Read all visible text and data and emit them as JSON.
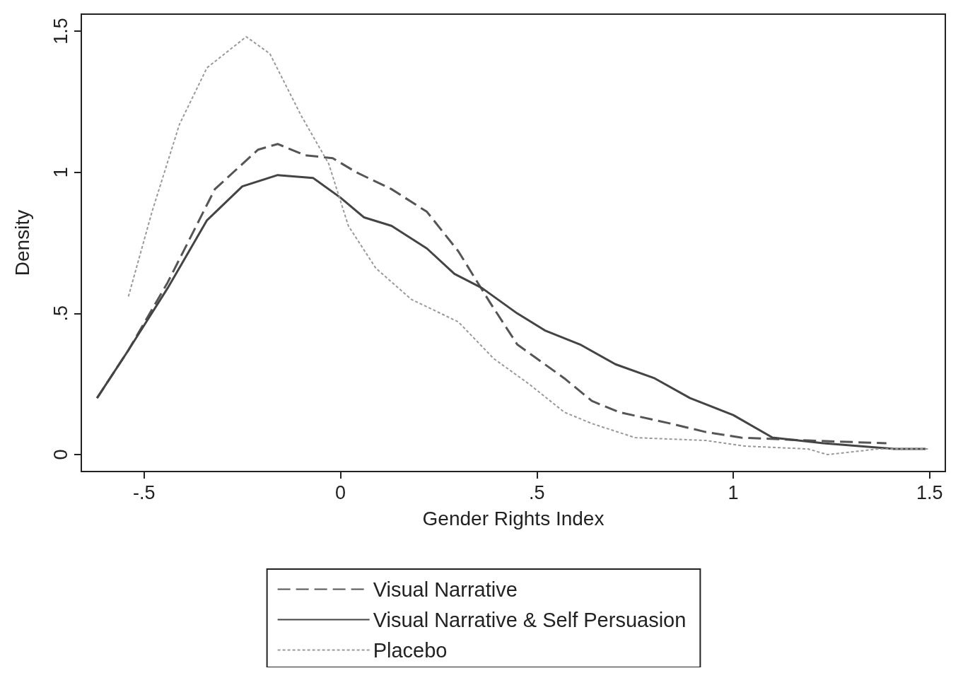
{
  "chart_data": {
    "type": "line",
    "xlabel": "Gender Rights Index",
    "ylabel": "Density",
    "xlim": [
      -0.66,
      1.54
    ],
    "ylim": [
      -0.06,
      1.56
    ],
    "xticks": [
      {
        "value": -0.5,
        "label": "-.5"
      },
      {
        "value": 0,
        "label": "0"
      },
      {
        "value": 0.5,
        "label": ".5"
      },
      {
        "value": 1,
        "label": "1"
      },
      {
        "value": 1.5,
        "label": "1.5"
      }
    ],
    "yticks": [
      {
        "value": 0,
        "label": "0"
      },
      {
        "value": 0.5,
        "label": ".5"
      },
      {
        "value": 1,
        "label": "1"
      },
      {
        "value": 1.5,
        "label": "1.5"
      }
    ],
    "grid": false,
    "legend": "bottom",
    "marker": "none",
    "series": [
      {
        "name": "Visual Narrative",
        "color": "#555555",
        "line_style": "dashed",
        "x": [
          -0.62,
          -0.54,
          -0.44,
          -0.32,
          -0.21,
          -0.16,
          -0.09,
          -0.02,
          0.04,
          0.13,
          0.22,
          0.3,
          0.38,
          0.45,
          0.5,
          0.57,
          0.64,
          0.71,
          0.84,
          0.93,
          1.02,
          1.19,
          1.39
        ],
        "values": [
          0.2,
          0.37,
          0.61,
          0.94,
          1.08,
          1.1,
          1.06,
          1.05,
          1.0,
          0.94,
          0.86,
          0.72,
          0.54,
          0.39,
          0.34,
          0.27,
          0.19,
          0.15,
          0.11,
          0.08,
          0.06,
          0.05,
          0.04
        ]
      },
      {
        "name": "Visual Narrative & Self Persuasion",
        "color": "#444444",
        "line_style": "solid",
        "x": [
          -0.62,
          -0.54,
          -0.44,
          -0.34,
          -0.25,
          -0.16,
          -0.07,
          0.0,
          0.06,
          0.13,
          0.22,
          0.29,
          0.36,
          0.45,
          0.52,
          0.61,
          0.7,
          0.8,
          0.89,
          1.0,
          1.1,
          1.23,
          1.41,
          1.49
        ],
        "values": [
          0.2,
          0.37,
          0.59,
          0.83,
          0.95,
          0.99,
          0.98,
          0.91,
          0.84,
          0.81,
          0.73,
          0.64,
          0.59,
          0.5,
          0.44,
          0.39,
          0.32,
          0.27,
          0.2,
          0.14,
          0.06,
          0.04,
          0.02,
          0.02
        ]
      },
      {
        "name": "Placebo",
        "color": "#999999",
        "line_style": "dotted",
        "x": [
          -0.54,
          -0.48,
          -0.41,
          -0.34,
          -0.24,
          -0.18,
          -0.1,
          -0.03,
          0.02,
          0.09,
          0.18,
          0.3,
          0.39,
          0.48,
          0.57,
          0.64,
          0.75,
          0.93,
          1.03,
          1.19,
          1.24,
          1.37,
          1.5
        ],
        "values": [
          0.56,
          0.86,
          1.17,
          1.37,
          1.48,
          1.42,
          1.2,
          1.03,
          0.81,
          0.66,
          0.55,
          0.47,
          0.34,
          0.25,
          0.15,
          0.11,
          0.06,
          0.05,
          0.03,
          0.02,
          0.0,
          0.02,
          0.02
        ]
      }
    ]
  }
}
